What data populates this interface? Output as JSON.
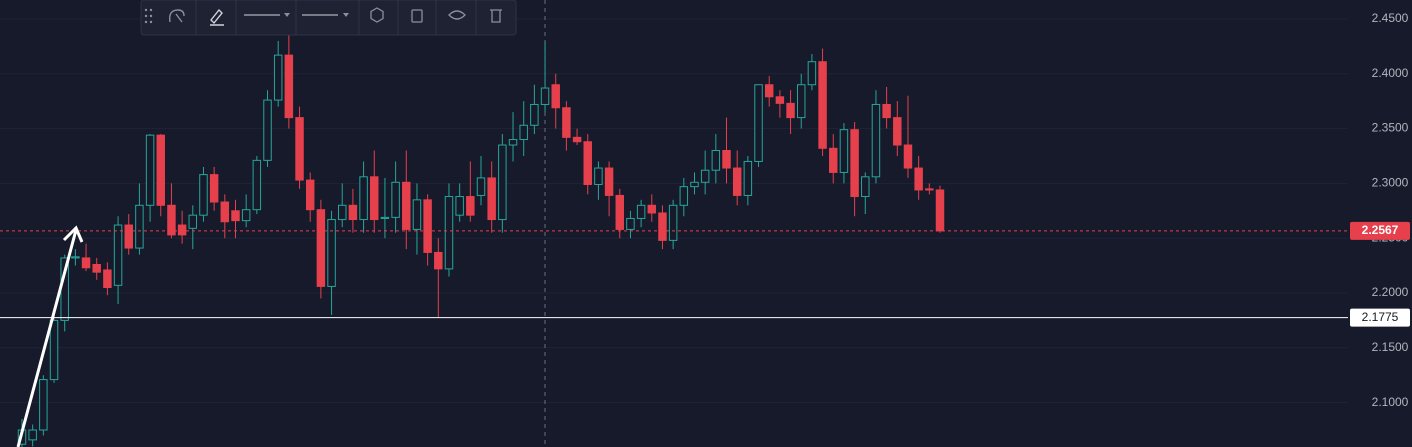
{
  "chart_data": {
    "type": "candlestick",
    "ylim": [
      2.0595,
      2.4673
    ],
    "yticks": [
      {
        "value": 2.45,
        "label": "2.4500"
      },
      {
        "value": 2.4,
        "label": "2.4000"
      },
      {
        "value": 2.35,
        "label": "2.3500"
      },
      {
        "value": 2.3,
        "label": "2.3000"
      },
      {
        "value": 2.25,
        "label": "2.2500"
      },
      {
        "value": 2.2,
        "label": "2.2000"
      },
      {
        "value": 2.15,
        "label": "2.1500"
      },
      {
        "value": 2.1,
        "label": "2.1000"
      }
    ],
    "grid": true,
    "up_color": "#26a69a",
    "down_color": "#e5404c",
    "price_lines": [
      {
        "value": 2.2567,
        "color": "#e5404c"
      },
      {
        "value": 2.1775,
        "color": "#ffffff"
      }
    ],
    "open": [
      2.062,
      2.066,
      2.075,
      2.121,
      2.175,
      2.232,
      2.232,
      2.226,
      2.221,
      2.207,
      2.262,
      2.241,
      2.28,
      2.344,
      2.28,
      2.262,
      2.259,
      2.271,
      2.308,
      2.283,
      2.275,
      2.266,
      2.276,
      2.321,
      2.376,
      2.417,
      2.36,
      2.303,
      2.276,
      2.206,
      2.267,
      2.28,
      2.267,
      2.306,
      2.268,
      2.269,
      2.301,
      2.258,
      2.285,
      2.237,
      2.222,
      2.271,
      2.288,
      2.289,
      2.305,
      2.267,
      2.335,
      2.34,
      2.353,
      2.372,
      2.39,
      2.369,
      2.342,
      2.338,
      2.299,
      2.314,
      2.289,
      2.258,
      2.268,
      2.28,
      2.273,
      2.248,
      2.28,
      2.297,
      2.301,
      2.312,
      2.33,
      2.314,
      2.289,
      2.32,
      2.39,
      2.379,
      2.373,
      2.36,
      2.39,
      2.411,
      2.332,
      2.31,
      2.349,
      2.288,
      2.306,
      2.372,
      2.36,
      2.335,
      2.314,
      2.295,
      2.294
    ],
    "high": [
      2.085,
      2.08,
      2.125,
      2.18,
      2.235,
      2.24,
      2.245,
      2.232,
      2.228,
      2.27,
      2.272,
      2.3,
      2.345,
      2.345,
      2.3,
      2.275,
      2.28,
      2.315,
      2.315,
      2.29,
      2.285,
      2.29,
      2.325,
      2.385,
      2.43,
      2.4365,
      2.37,
      2.31,
      2.285,
      2.275,
      2.3,
      2.295,
      2.32,
      2.33,
      2.305,
      2.32,
      2.33,
      2.3,
      2.29,
      2.25,
      2.3,
      2.3,
      2.32,
      2.325,
      2.32,
      2.345,
      2.365,
      2.375,
      2.39,
      2.429,
      2.4,
      2.375,
      2.35,
      2.345,
      2.32,
      2.32,
      2.295,
      2.275,
      2.285,
      2.29,
      2.28,
      2.285,
      2.305,
      2.31,
      2.33,
      2.345,
      2.36,
      2.33,
      2.325,
      2.39,
      2.398,
      2.385,
      2.385,
      2.4,
      2.418,
      2.423,
      2.345,
      2.355,
      2.356,
      2.31,
      2.385,
      2.388,
      2.375,
      2.38,
      2.325,
      2.3,
      2.298
    ],
    "low": [
      2.058,
      2.06,
      2.07,
      2.118,
      2.165,
      2.225,
      2.22,
      2.212,
      2.198,
      2.19,
      2.235,
      2.235,
      2.265,
      2.27,
      2.25,
      2.245,
      2.24,
      2.265,
      2.275,
      2.25,
      2.25,
      2.26,
      2.272,
      2.315,
      2.37,
      2.35,
      2.295,
      2.265,
      2.195,
      2.18,
      2.26,
      2.255,
      2.255,
      2.255,
      2.25,
      2.255,
      2.24,
      2.235,
      2.225,
      2.178,
      2.215,
      2.265,
      2.265,
      2.28,
      2.255,
      2.255,
      2.32,
      2.325,
      2.345,
      2.365,
      2.35,
      2.33,
      2.335,
      2.29,
      2.285,
      2.27,
      2.25,
      2.25,
      2.26,
      2.265,
      2.24,
      2.24,
      2.27,
      2.29,
      2.29,
      2.3,
      2.3,
      2.28,
      2.28,
      2.315,
      2.37,
      2.36,
      2.345,
      2.35,
      2.385,
      2.325,
      2.3,
      2.3,
      2.27,
      2.272,
      2.3,
      2.35,
      2.325,
      2.305,
      2.285,
      2.29,
      2.255
    ],
    "close": [
      2.075,
      2.075,
      2.121,
      2.175,
      2.232,
      2.233,
      2.223,
      2.219,
      2.205,
      2.262,
      2.241,
      2.28,
      2.344,
      2.28,
      2.253,
      2.253,
      2.271,
      2.308,
      2.283,
      2.265,
      2.266,
      2.276,
      2.321,
      2.376,
      2.417,
      2.36,
      2.303,
      2.276,
      2.206,
      2.267,
      2.28,
      2.267,
      2.306,
      2.267,
      2.269,
      2.301,
      2.258,
      2.285,
      2.237,
      2.222,
      2.288,
      2.288,
      2.271,
      2.305,
      2.267,
      2.335,
      2.34,
      2.353,
      2.372,
      2.387,
      2.369,
      2.342,
      2.338,
      2.299,
      2.314,
      2.289,
      2.258,
      2.268,
      2.28,
      2.273,
      2.248,
      2.28,
      2.297,
      2.301,
      2.312,
      2.33,
      2.314,
      2.289,
      2.32,
      2.39,
      2.379,
      2.373,
      2.36,
      2.39,
      2.411,
      2.332,
      2.31,
      2.349,
      2.288,
      2.306,
      2.372,
      2.36,
      2.335,
      2.314,
      2.294,
      2.294,
      2.2567
    ]
  }
}
